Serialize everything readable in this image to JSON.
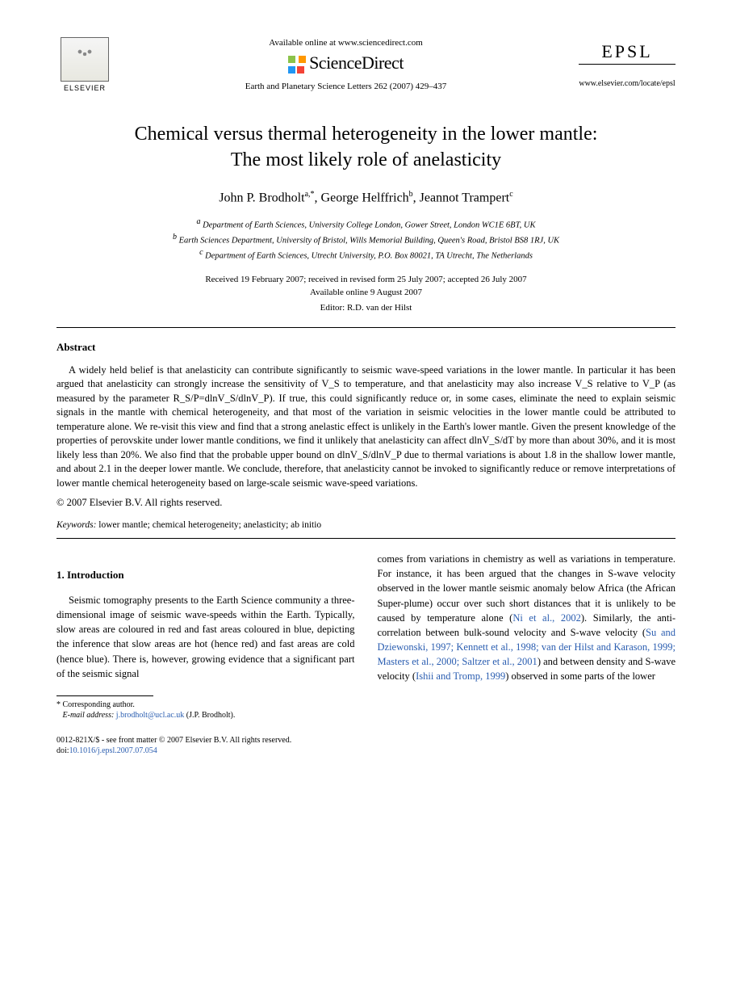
{
  "header": {
    "available_online": "Available online at www.sciencedirect.com",
    "sd_name": "ScienceDirect",
    "journal_ref": "Earth and Planetary Science Letters 262 (2007) 429–437",
    "elsevier_label": "ELSEVIER",
    "epsl_label": "EPSL",
    "epsl_url": "www.elsevier.com/locate/epsl"
  },
  "title": {
    "line1": "Chemical versus thermal heterogeneity in the lower mantle:",
    "line2": "The most likely role of anelasticity"
  },
  "authors": {
    "a1": "John P. Brodholt",
    "a1_sup": "a,*",
    "a2": "George Helffrich",
    "a2_sup": "b",
    "a3": "Jeannot Trampert",
    "a3_sup": "c"
  },
  "affiliations": {
    "a": "Department of Earth Sciences, University College London, Gower Street, London WC1E 6BT, UK",
    "b": "Earth Sciences Department, University of Bristol, Wills Memorial Building, Queen's Road, Bristol BS8 1RJ, UK",
    "c": "Department of Earth Sciences, Utrecht University, P.O. Box 80021, TA Utrecht, The Netherlands"
  },
  "dates": {
    "received": "Received 19 February 2007; received in revised form 25 July 2007; accepted 26 July 2007",
    "online": "Available online 9 August 2007"
  },
  "editor": "Editor: R.D. van der Hilst",
  "abstract_label": "Abstract",
  "abstract_text": "A widely held belief is that anelasticity can contribute significantly to seismic wave-speed variations in the lower mantle. In particular it has been argued that anelasticity can strongly increase the sensitivity of V_S to temperature, and that anelasticity may also increase V_S relative to V_P (as measured by the parameter R_S/P=dlnV_S/dlnV_P). If true, this could significantly reduce or, in some cases, eliminate the need to explain seismic signals in the mantle with chemical heterogeneity, and that most of the variation in seismic velocities in the lower mantle could be attributed to temperature alone. We re-visit this view and find that a strong anelastic effect is unlikely in the Earth's lower mantle. Given the present knowledge of the properties of perovskite under lower mantle conditions, we find it unlikely that anelasticity can affect dlnV_S/dT by more than about 30%, and it is most likely less than 20%. We also find that the probable upper bound on dlnV_S/dlnV_P due to thermal variations is about 1.8 in the shallow lower mantle, and about 2.1 in the deeper lower mantle. We conclude, therefore, that anelasticity cannot be invoked to significantly reduce or remove interpretations of lower mantle chemical heterogeneity based on large-scale seismic wave-speed variations.",
  "copyright": "© 2007 Elsevier B.V. All rights reserved.",
  "keywords_label": "Keywords:",
  "keywords": " lower mantle; chemical heterogeneity; anelasticity; ab initio",
  "section1_heading": "1. Introduction",
  "body": {
    "col1_p1": "Seismic tomography presents to the Earth Science community a three-dimensional image of seismic wave-speeds within the Earth. Typically, slow areas are coloured in red and fast areas coloured in blue, depicting the inference that slow areas are hot (hence red) and fast areas are cold (hence blue). There is, however, growing evidence that a significant part of the seismic signal",
    "col2_p1a": "comes from variations in chemistry as well as variations in temperature. For instance, it has been argued that the changes in S-wave velocity observed in the lower mantle seismic anomaly below Africa (the African Super-plume) occur over such short distances that it is unlikely to be caused by temperature alone (",
    "ref1": "Ni et al., 2002",
    "col2_p1b": "). Similarly, the anti-correlation between bulk-sound velocity and S-wave velocity (",
    "ref2": "Su and Dziewonski, 1997; Kennett et al., 1998; van der Hilst and Karason, 1999; Masters et al., 2000; Saltzer et al., 2001",
    "col2_p1c": ") and between density and S-wave velocity (",
    "ref3": "Ishii and Tromp, 1999",
    "col2_p1d": ") observed in some parts of the lower"
  },
  "footnote": {
    "corr": "* Corresponding author.",
    "email_label": "E-mail address:",
    "email": "j.brodholt@ucl.ac.uk",
    "email_name": " (J.P. Brodholt)."
  },
  "footer": {
    "line1": "0012-821X/$ - see front matter © 2007 Elsevier B.V. All rights reserved.",
    "doi_label": "doi:",
    "doi": "10.1016/j.epsl.2007.07.054"
  }
}
